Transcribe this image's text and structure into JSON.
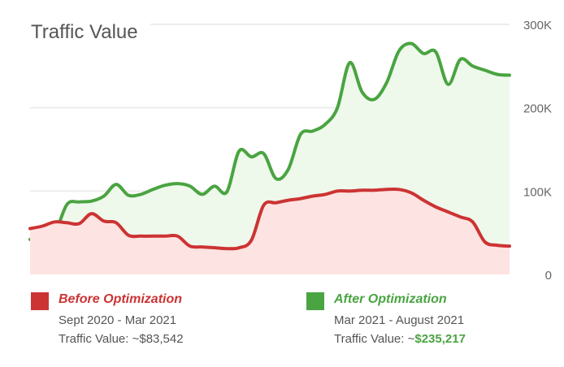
{
  "chart_data": {
    "type": "area",
    "title": "Traffic Value",
    "y_ticks": [
      "0",
      "100K",
      "200K",
      "300K"
    ],
    "ylim": [
      0,
      300000
    ],
    "grid": true,
    "series": [
      {
        "name": "Before Optimization",
        "color": "#cc3333",
        "fill": "#fde3e1",
        "values": [
          55000,
          58000,
          63000,
          62000,
          61000,
          73000,
          64000,
          62000,
          47000,
          46000,
          46000,
          46000,
          46000,
          34000,
          33000,
          32000,
          31000,
          32000,
          41000,
          83000,
          86000,
          89000,
          91000,
          94000,
          96000,
          100000,
          100000,
          101000,
          101000,
          102000,
          102000,
          98000,
          89000,
          81000,
          75000,
          69000,
          63000,
          39000,
          35000,
          34000
        ]
      },
      {
        "name": "After Optimization",
        "color": "#4aa441",
        "fill": "#eef9ec",
        "values": [
          42000,
          42000,
          49000,
          84000,
          87000,
          88000,
          94000,
          108000,
          95000,
          96000,
          102000,
          107000,
          109000,
          106000,
          96000,
          106000,
          99000,
          148000,
          141000,
          145000,
          115000,
          126000,
          168000,
          172000,
          180000,
          200000,
          254000,
          219000,
          210000,
          230000,
          268000,
          277000,
          265000,
          267000,
          228000,
          258000,
          250000,
          245000,
          240000,
          239000
        ]
      }
    ],
    "legend": "bottom"
  },
  "legend": {
    "before": {
      "name": "Before Optimization",
      "dates": "Sept 2020 - Mar 2021",
      "value_label": "Traffic Value: ~$83,542",
      "color": "#cc3333"
    },
    "after": {
      "name": "After Optimization",
      "dates": "Mar 2021 - August 2021",
      "value_prefix": "Traffic Value: ~",
      "value": "$235,217",
      "color": "#4aa441"
    }
  }
}
